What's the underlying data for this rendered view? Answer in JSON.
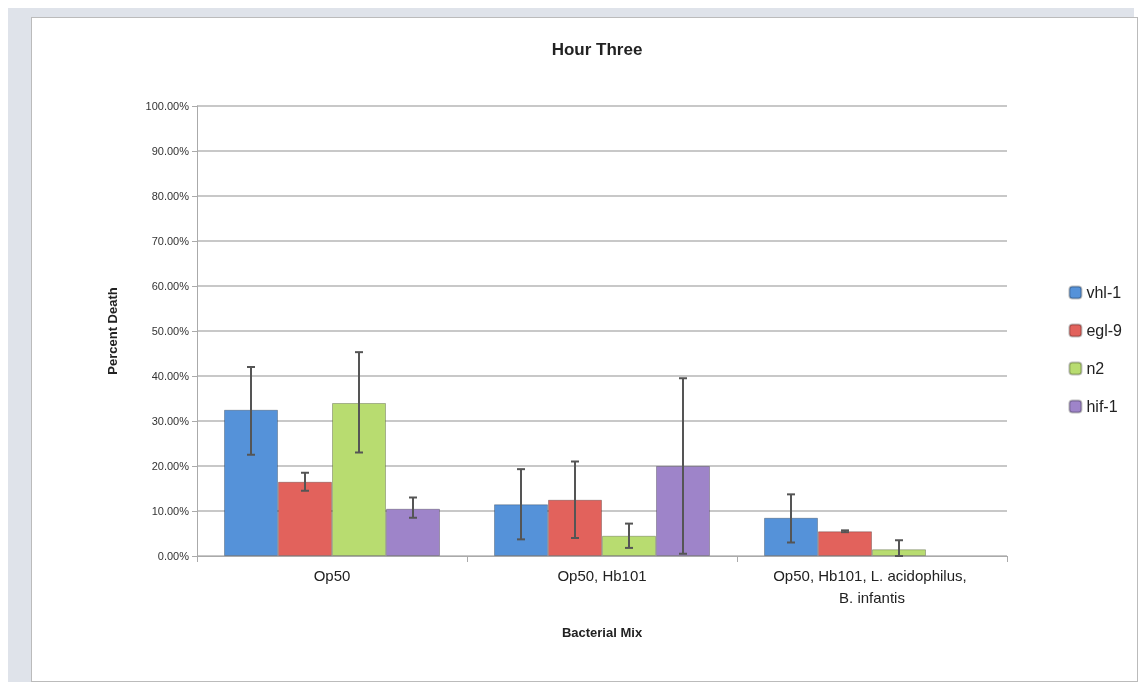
{
  "chart_data": {
    "type": "bar",
    "title": "Hour Three",
    "xlabel": "Bacterial Mix",
    "ylabel": "Percent Death",
    "categories": [
      "Op50",
      "Op50, Hb101",
      "Op50, Hb101, L. acidophilus, B. infantis"
    ],
    "series": [
      {
        "name": "vhl-1",
        "color": "#5592d9",
        "values": [
          32.5,
          11.5,
          8.5
        ],
        "errors": [
          [
            22.5,
            42
          ],
          [
            3.7,
            19.3
          ],
          [
            3,
            13.7
          ]
        ]
      },
      {
        "name": "egl-9",
        "color": "#e2625c",
        "values": [
          16.5,
          12.5,
          5.5
        ],
        "errors": [
          [
            14.5,
            18.5
          ],
          [
            4,
            21
          ],
          [
            5.3,
            5.7
          ]
        ]
      },
      {
        "name": "n2",
        "color": "#b8dc70",
        "values": [
          34,
          4.5,
          1.5
        ],
        "errors": [
          [
            23,
            45.3
          ],
          [
            1.8,
            7.2
          ],
          [
            0,
            3.5
          ]
        ]
      },
      {
        "name": "hif-1",
        "color": "#9e84c9",
        "values": [
          10.5,
          20,
          null
        ],
        "errors": [
          [
            8.5,
            13
          ],
          [
            0.5,
            39.5
          ],
          null
        ]
      }
    ],
    "ylim": [
      0,
      100
    ],
    "yticks": [
      {
        "value": 0,
        "label": "0.00%"
      },
      {
        "value": 10,
        "label": "10.00%"
      },
      {
        "value": 20,
        "label": "20.00%"
      },
      {
        "value": 30,
        "label": "30.00%"
      },
      {
        "value": 40,
        "label": "40.00%"
      },
      {
        "value": 50,
        "label": "50.00%"
      },
      {
        "value": 60,
        "label": "60.00%"
      },
      {
        "value": 70,
        "label": "70.00%"
      },
      {
        "value": 80,
        "label": "80.00%"
      },
      {
        "value": 90,
        "label": "90.00%"
      },
      {
        "value": 100,
        "label": "100.00%"
      }
    ],
    "grid": "y",
    "legend": "right"
  }
}
